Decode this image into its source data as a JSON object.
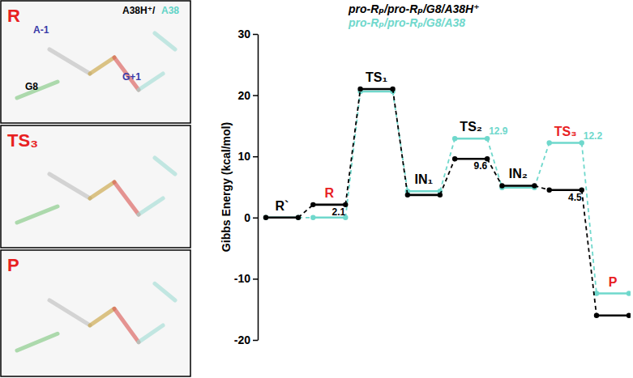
{
  "panels": [
    {
      "label": "R",
      "color": "#e8201f",
      "texts": [
        {
          "text": "A38H⁺/",
          "color": "#000000"
        },
        {
          "text": "A38",
          "color": "#5fd3c6"
        },
        {
          "text": "A-1",
          "color": "#3a3aa8"
        },
        {
          "text": "G8",
          "color": "#000000"
        },
        {
          "text": "G+1",
          "color": "#3a3aa8"
        }
      ]
    },
    {
      "label": "TS₃",
      "color": "#e8201f"
    },
    {
      "label": "P",
      "color": "#e8201f"
    }
  ],
  "chart_data": {
    "type": "line",
    "ylabel": "Gibbs Energy (kcal/mol)",
    "categories": [
      "R`",
      "R",
      "TS₁",
      "IN₁",
      "TS₂",
      "IN₂",
      "TS₃",
      "P"
    ],
    "series": [
      {
        "name": "pro-Rₚ/pro-Rₚ/G8/A38H⁺",
        "color": "#000000",
        "marker": "circle",
        "values": [
          0,
          2.1,
          21.0,
          3.7,
          9.6,
          5.2,
          4.5,
          -16.0
        ],
        "value_labels": [
          null,
          "2.1",
          null,
          null,
          "9.6",
          null,
          "4.5",
          null
        ]
      },
      {
        "name": "pro-Rₚ/pro-Rₚ/G8/A38",
        "color": "#6fd8cc",
        "marker": "circle",
        "values": [
          0,
          0,
          20.6,
          4.3,
          12.9,
          4.9,
          12.2,
          -12.4
        ],
        "value_labels": [
          null,
          null,
          null,
          null,
          "12.9",
          null,
          "12.2",
          null
        ]
      }
    ],
    "ylim": [
      -20,
      30
    ],
    "yticks": [
      -20,
      -10,
      0,
      10,
      20,
      30
    ],
    "grid": false,
    "line_style": "dashed",
    "data_labels": true
  }
}
